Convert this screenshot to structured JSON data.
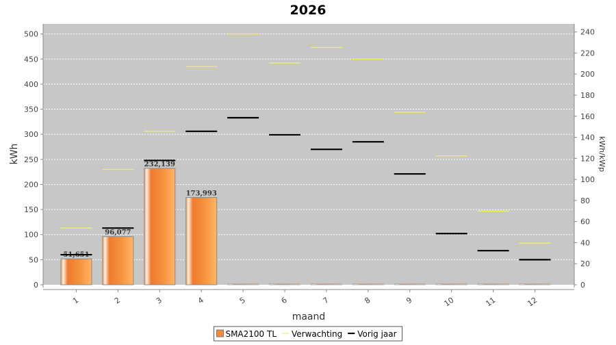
{
  "chart_data": {
    "type": "bar",
    "title": "2026",
    "xlabel": "maand",
    "ylabel": "kWh",
    "y2label": "kWh/kWp",
    "categories": [
      "1",
      "2",
      "3",
      "4",
      "5",
      "6",
      "7",
      "8",
      "9",
      "10",
      "11",
      "12"
    ],
    "ylim": [
      0,
      520
    ],
    "y2lim": [
      0,
      247.6
    ],
    "yticks": [
      0,
      50,
      100,
      150,
      200,
      250,
      300,
      350,
      400,
      450,
      500
    ],
    "y2ticks": [
      0,
      20,
      40,
      60,
      80,
      100,
      120,
      140,
      160,
      180,
      200,
      220,
      240
    ],
    "grid": true,
    "legend_position": "bottom",
    "series": [
      {
        "name": "SMA2100 TL",
        "kind": "bar",
        "color": "#f58a3c",
        "values": [
          51.651,
          96.077,
          232.139,
          173.993,
          0,
          0,
          0,
          0,
          0,
          0,
          0,
          0
        ],
        "labels": [
          "51,651",
          "96,077",
          "232,139",
          "173,993",
          "",
          "",
          "",
          "",
          "",
          "",
          "",
          ""
        ]
      },
      {
        "name": "Verwachting",
        "kind": "step",
        "color": "#f0f060",
        "values": [
          113,
          230,
          306,
          435,
          500,
          442,
          473,
          450,
          344,
          257,
          147,
          83
        ]
      },
      {
        "name": "Vorig jaar",
        "kind": "step",
        "color": "#000000",
        "values": [
          60,
          113,
          248,
          306,
          333,
          299,
          270,
          285,
          221,
          102,
          68,
          50
        ]
      }
    ]
  }
}
